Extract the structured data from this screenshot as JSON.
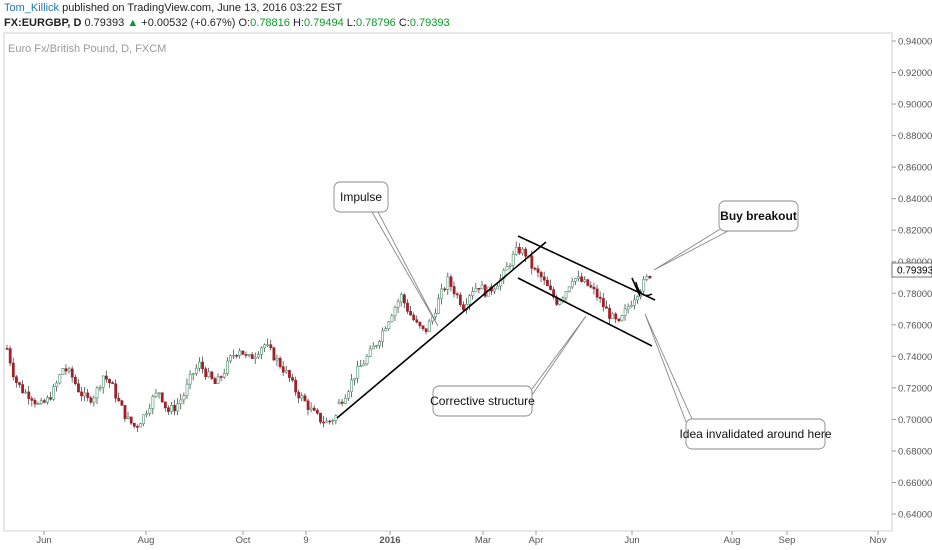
{
  "header": {
    "author": "Tom_Killick",
    "published_text": " published on TradingView.com, June 13, 2016 03:22 EST",
    "symbol": "FX:EURGBP, D",
    "last": "0.79393",
    "change_arrow": "▲",
    "change": "+0.00532 (+0.67%)",
    "o_label": "O:",
    "o_value": "0.78816",
    "h_label": "H:",
    "h_value": "0.79494",
    "l_label": "L:",
    "l_value": "0.78796",
    "c_label": "C:",
    "c_value": "0.79393"
  },
  "chart_data": {
    "type": "candlestick",
    "title": "Euro Fx/British Pound, D, FXCM",
    "price_axis": {
      "ylim": [
        0.63,
        0.945
      ],
      "ticks": [
        "0.94000",
        "0.92000",
        "0.90000",
        "0.88000",
        "0.86000",
        "0.84000",
        "0.82000",
        "0.80000",
        "0.78000",
        "0.76000",
        "0.74000",
        "0.72000",
        "0.70000",
        "0.68000",
        "0.66000",
        "0.64000"
      ],
      "last_price_label": "0.79393"
    },
    "time_axis": {
      "labels": [
        "Jun",
        "Aug",
        "Oct",
        "9",
        "2016",
        "Mar",
        "Apr",
        "Jun",
        "Aug",
        "Sep",
        "Nov"
      ]
    },
    "price_path_approx": [
      [
        0.745,
        0.725,
        0.718,
        0.715,
        0.708,
        0.712,
        0.72,
        0.733,
        0.728,
        0.718,
        0.712,
        0.716,
        0.728,
        0.722,
        0.71,
        0.7,
        0.695,
        0.702,
        0.712,
        0.718,
        0.705,
        0.708,
        0.715,
        0.728,
        0.735,
        0.728,
        0.722,
        0.73,
        0.74,
        0.745,
        0.738,
        0.742,
        0.748,
        0.742,
        0.735,
        0.728,
        0.718,
        0.712,
        0.705,
        0.7,
        0.698,
        0.702
      ],
      [
        0.71,
        0.718,
        0.728,
        0.735,
        0.742,
        0.75,
        0.76,
        0.77,
        0.778,
        0.768,
        0.76,
        0.755,
        0.765,
        0.778,
        0.788,
        0.78,
        0.772,
        0.782,
        0.785,
        0.78,
        0.785,
        0.79,
        0.8,
        0.808,
        0.805,
        0.795,
        0.79,
        0.782,
        0.775,
        0.78,
        0.79,
        0.788,
        0.785,
        0.78,
        0.772,
        0.765,
        0.76,
        0.77,
        0.778,
        0.785,
        0.792
      ]
    ],
    "annotations": [
      {
        "text": "Impulse"
      },
      {
        "text": "Buy breakout"
      },
      {
        "text": "Corrective structure"
      },
      {
        "text": "Idea invalidated around here"
      }
    ],
    "colors": {
      "up": "#ffffff",
      "down": "#a0202a",
      "up_fill": "#4a8f6a",
      "wick": "#333333"
    }
  }
}
